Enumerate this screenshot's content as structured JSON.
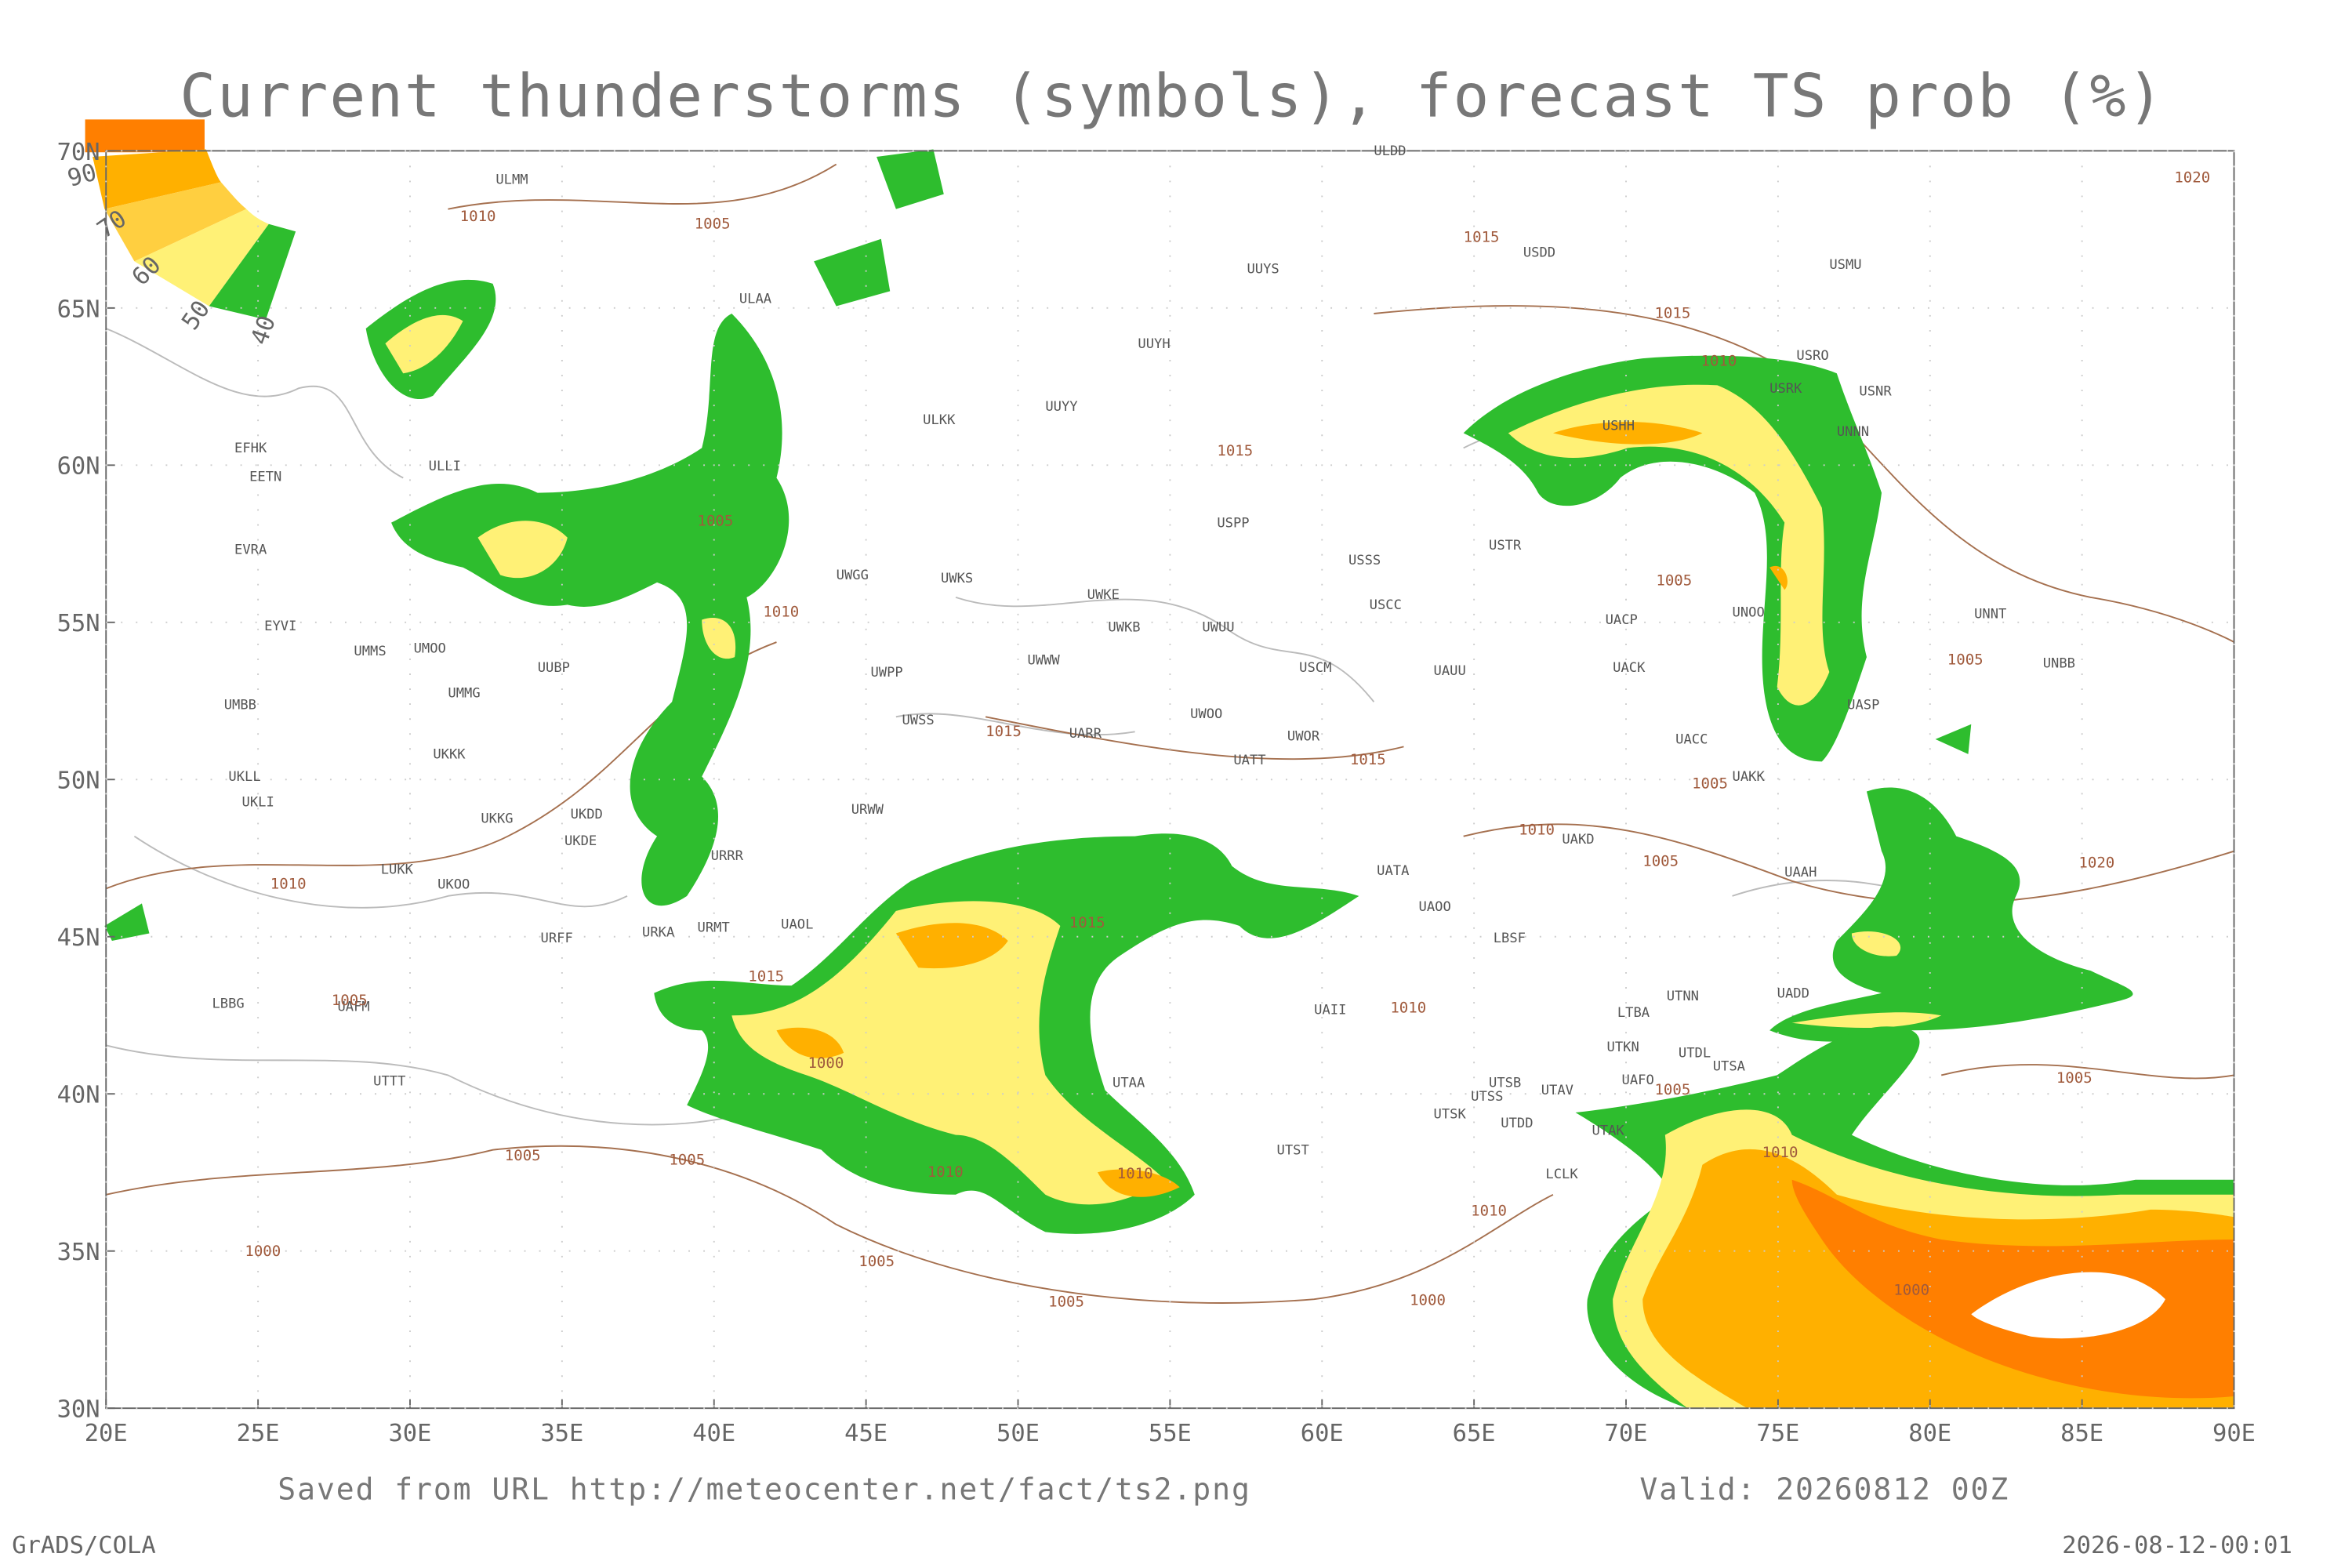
{
  "title": "Current thunderstorms (symbols), forecast TS prob (%)",
  "map": {
    "xlim": [
      20,
      90
    ],
    "ylim": [
      30,
      70
    ],
    "xticks": [
      {
        "value": 20,
        "label": "20E"
      },
      {
        "value": 25,
        "label": "25E"
      },
      {
        "value": 30,
        "label": "30E"
      },
      {
        "value": 35,
        "label": "35E"
      },
      {
        "value": 40,
        "label": "40E"
      },
      {
        "value": 45,
        "label": "45E"
      },
      {
        "value": 50,
        "label": "50E"
      },
      {
        "value": 55,
        "label": "55E"
      },
      {
        "value": 60,
        "label": "60E"
      },
      {
        "value": 65,
        "label": "65E"
      },
      {
        "value": 70,
        "label": "70E"
      },
      {
        "value": 75,
        "label": "75E"
      },
      {
        "value": 80,
        "label": "80E"
      },
      {
        "value": 85,
        "label": "85E"
      },
      {
        "value": 90,
        "label": "90E"
      }
    ],
    "yticks": [
      {
        "value": 30,
        "label": "30N"
      },
      {
        "value": 35,
        "label": "35N"
      },
      {
        "value": 40,
        "label": "40N"
      },
      {
        "value": 45,
        "label": "45N"
      },
      {
        "value": 50,
        "label": "50N"
      },
      {
        "value": 55,
        "label": "55N"
      },
      {
        "value": 60,
        "label": "60N"
      },
      {
        "value": 65,
        "label": "65N"
      },
      {
        "value": 70,
        "label": "70N"
      }
    ]
  },
  "legend": {
    "levels": [
      40,
      50,
      60,
      70,
      90
    ]
  },
  "stations": [
    "ULDD",
    "ULMM",
    "USDD",
    "UUYS",
    "USMU",
    "ULAA",
    "UUYH",
    "USRO",
    "USRK",
    "USNR",
    "ULKK",
    "UUYY",
    "USHH",
    "UNNN",
    "EFHK",
    "EETN",
    "ULLI",
    "USPP",
    "UWGG",
    "UWKS",
    "USSS",
    "USTR",
    "UWKE",
    "UWKB",
    "UWUU",
    "USCC",
    "UACP",
    "UNOO",
    "UNNT",
    "EVRA",
    "EYVI",
    "UMMS",
    "UMOO",
    "UUBP",
    "UMMG",
    "UWPP",
    "UWWW",
    "USCM",
    "UAUU",
    "UACK",
    "UNBB",
    "UMBB",
    "UWSS",
    "UARR",
    "UWOO",
    "UWOR",
    "UACC",
    "UASP",
    "UKKK",
    "UKLL",
    "UKLI",
    "UKKG",
    "UKDD",
    "UKDE",
    "URRR",
    "URWW",
    "UATT",
    "UATA",
    "UAKD",
    "UAKK",
    "UAAH",
    "LUKK",
    "UKOO",
    "URFF",
    "URKA",
    "URMT",
    "UAOL",
    "UAOO",
    "LBSF",
    "LBBG",
    "UAFM",
    "UADD",
    "UTNN",
    "UAII",
    "LTBA",
    "UTTT",
    "UTKN",
    "UTDL",
    "UAFO",
    "UTSA",
    "UTSB",
    "UTSS",
    "UTAV",
    "UTSK",
    "UTDD",
    "UTAK",
    "UTAA",
    "UTST",
    "LCLK"
  ],
  "isobars": [
    "1010",
    "1005",
    "1015",
    "1015",
    "1010",
    "1005",
    "1010",
    "1015",
    "1005",
    "1005",
    "1015",
    "1015",
    "1010",
    "1005",
    "1005",
    "1020",
    "1010",
    "1015",
    "1015",
    "1005",
    "1010",
    "1000",
    "1005",
    "1005",
    "1010",
    "1010",
    "1010",
    "1005",
    "1005",
    "1010",
    "1000",
    "1005",
    "1005",
    "1000",
    "1000",
    "1020"
  ],
  "footer": {
    "source": "Saved from URL http://meteocenter.net/fact/ts2.png",
    "valid": "Valid: 20260812 00Z",
    "software": "GrADS/COLA",
    "timestamp": "2026-08-12-00:01"
  }
}
